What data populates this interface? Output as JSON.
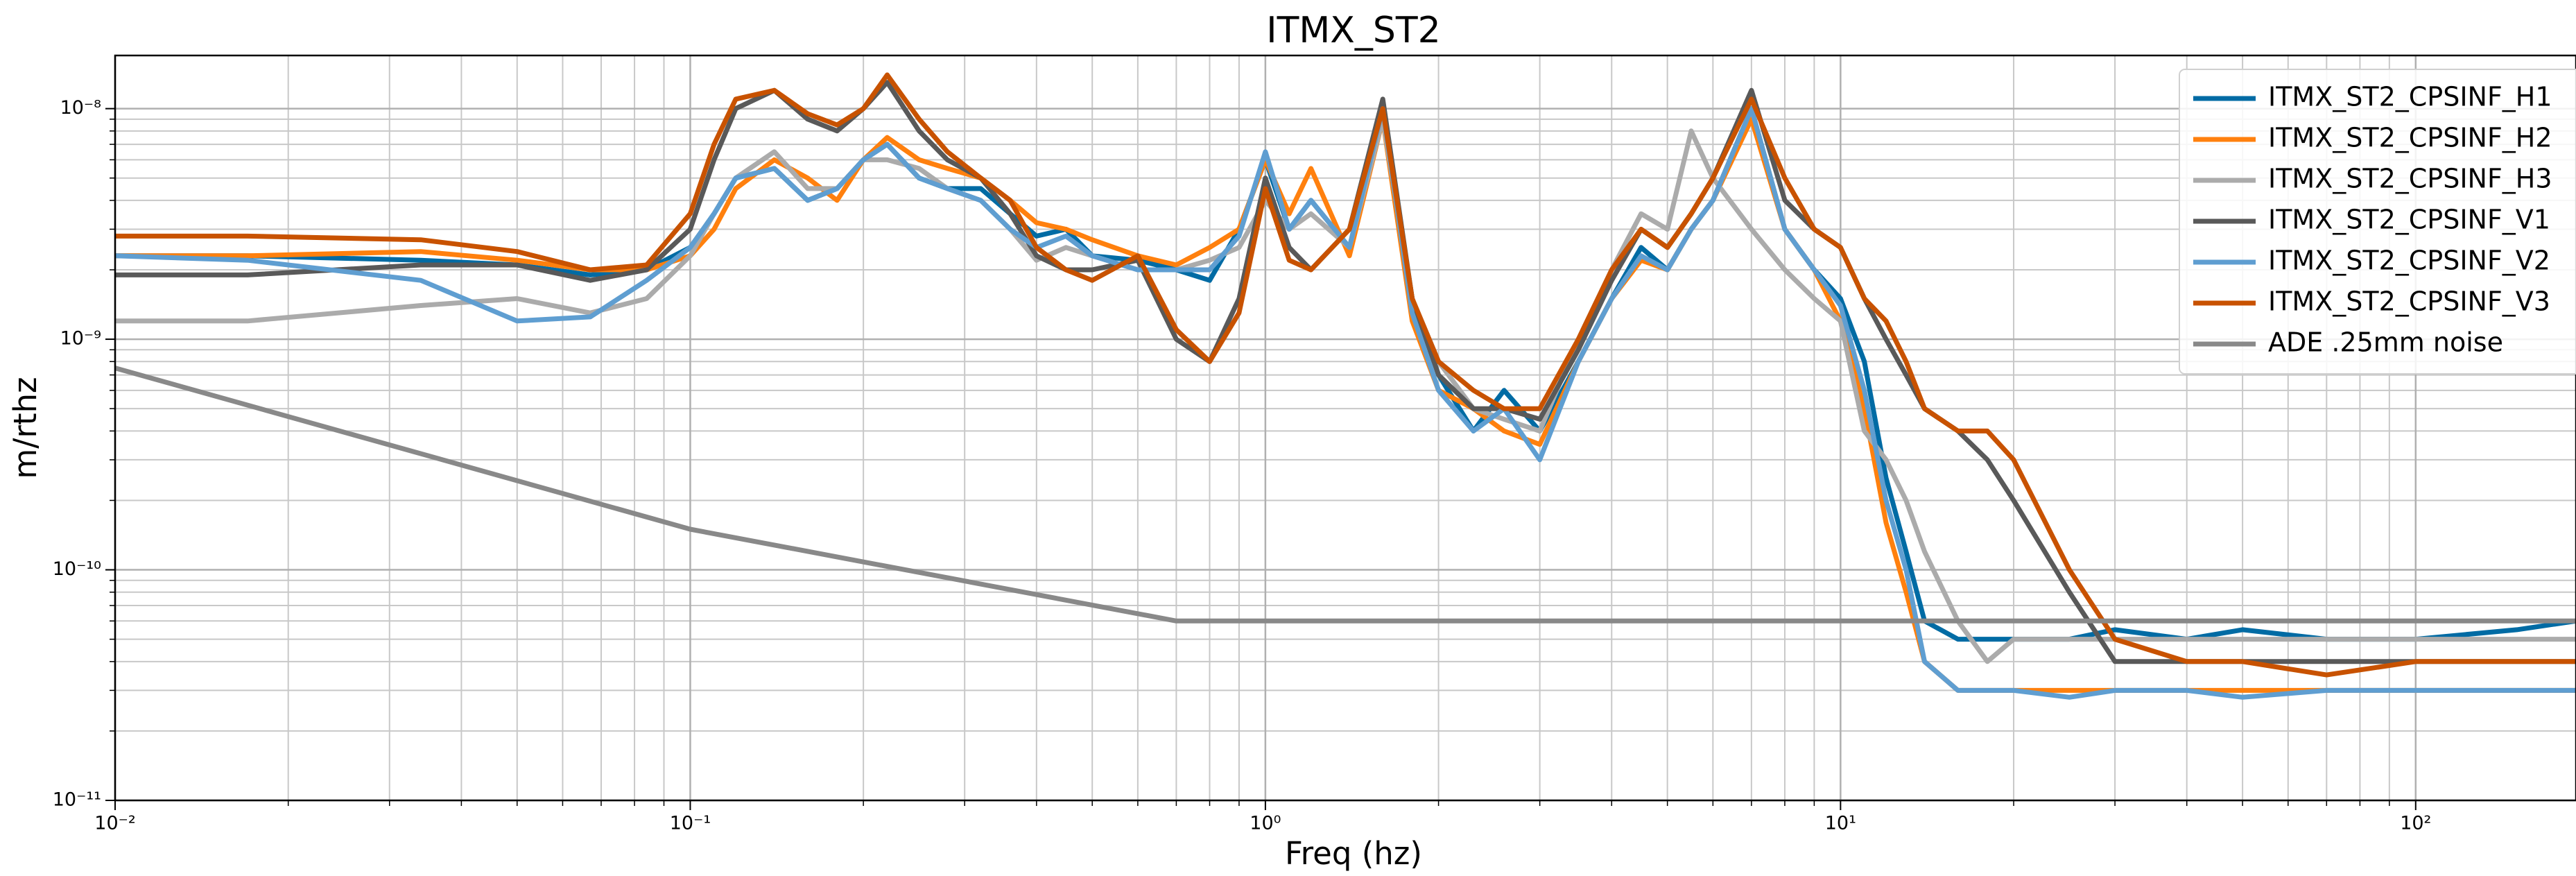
{
  "chart_data": {
    "type": "line",
    "title": "ITMX_ST2",
    "xlabel": "Freq (hz)",
    "ylabel": "m/rthz",
    "xscale": "log",
    "yscale": "log",
    "grid": true,
    "minor_grid": true,
    "legend": "upper right",
    "xlim": [
      0.01,
      190
    ],
    "ylim": [
      1e-11,
      1.7e-08
    ],
    "xticks": [
      {
        "value": 0.01,
        "label": "10⁻²"
      },
      {
        "value": 0.1,
        "label": "10⁻¹"
      },
      {
        "value": 1,
        "label": "10⁰"
      },
      {
        "value": 10,
        "label": "10¹"
      },
      {
        "value": 100,
        "label": "10²"
      }
    ],
    "yticks": [
      {
        "value": 1e-11,
        "label": "10⁻¹¹"
      },
      {
        "value": 1e-10,
        "label": "10⁻¹⁰"
      },
      {
        "value": 1e-09,
        "label": "10⁻⁹"
      },
      {
        "value": 1e-08,
        "label": "10⁻⁸"
      }
    ],
    "x": [
      0.01,
      0.017,
      0.034,
      0.05,
      0.067,
      0.084,
      0.1,
      0.11,
      0.12,
      0.14,
      0.16,
      0.18,
      0.2,
      0.22,
      0.25,
      0.28,
      0.32,
      0.36,
      0.4,
      0.45,
      0.5,
      0.6,
      0.7,
      0.8,
      0.9,
      1.0,
      1.1,
      1.2,
      1.4,
      1.6,
      1.8,
      2.0,
      2.3,
      2.6,
      3.0,
      3.5,
      4.0,
      4.5,
      5.0,
      5.5,
      6.0,
      7.0,
      8.0,
      9.0,
      10,
      11,
      12,
      13,
      14,
      16,
      18,
      20,
      25,
      30,
      40,
      50,
      70,
      100,
      150,
      190
    ],
    "series": [
      {
        "name": "ITMX_ST2_CPSINF_H1",
        "color": "#006ba4",
        "values": [
          2.3e-09,
          2.3e-09,
          2.2e-09,
          2.1e-09,
          1.9e-09,
          2e-09,
          2.5e-09,
          3.5e-09,
          5e-09,
          5.5e-09,
          4e-09,
          4.5e-09,
          6e-09,
          7e-09,
          5e-09,
          4.5e-09,
          4.5e-09,
          3.5e-09,
          2.8e-09,
          3e-09,
          2.3e-09,
          2.2e-09,
          2e-09,
          1.8e-09,
          3e-09,
          6e-09,
          3e-09,
          4e-09,
          2.5e-09,
          1e-08,
          1.5e-09,
          7e-10,
          4e-10,
          6e-10,
          4e-10,
          8e-10,
          1.5e-09,
          2.5e-09,
          2e-09,
          3e-09,
          4e-09,
          1e-08,
          3e-09,
          2e-09,
          1.5e-09,
          8e-10,
          2.5e-10,
          1.2e-10,
          6e-11,
          5e-11,
          5e-11,
          5e-11,
          5e-11,
          5.5e-11,
          5e-11,
          5.5e-11,
          5e-11,
          5e-11,
          5.5e-11,
          6e-11
        ]
      },
      {
        "name": "ITMX_ST2_CPSINF_H2",
        "color": "#ff800e",
        "values": [
          2.3e-09,
          2.3e-09,
          2.4e-09,
          2.2e-09,
          2e-09,
          2e-09,
          2.3e-09,
          3e-09,
          4.5e-09,
          6e-09,
          5e-09,
          4e-09,
          6e-09,
          7.5e-09,
          6e-09,
          5.5e-09,
          5e-09,
          4e-09,
          3.2e-09,
          3e-09,
          2.7e-09,
          2.3e-09,
          2.1e-09,
          2.5e-09,
          3e-09,
          6e-09,
          3.5e-09,
          5.5e-09,
          2.3e-09,
          9e-09,
          1.2e-09,
          6e-10,
          5e-10,
          4e-10,
          3.5e-10,
          8e-10,
          1.5e-09,
          2.2e-09,
          2e-09,
          3e-09,
          4e-09,
          9e-09,
          3e-09,
          2e-09,
          1.2e-09,
          5e-10,
          1.6e-10,
          8e-11,
          4e-11,
          3e-11,
          3e-11,
          3e-11,
          3e-11,
          3e-11,
          3e-11,
          3e-11,
          3e-11,
          3e-11,
          3e-11,
          3e-11
        ]
      },
      {
        "name": "ITMX_ST2_CPSINF_H3",
        "color": "#ababab",
        "values": [
          1.2e-09,
          1.2e-09,
          1.4e-09,
          1.5e-09,
          1.3e-09,
          1.5e-09,
          2.3e-09,
          3.5e-09,
          5e-09,
          6.5e-09,
          4.5e-09,
          4.5e-09,
          6e-09,
          6e-09,
          5.5e-09,
          4.5e-09,
          4e-09,
          3e-09,
          2.2e-09,
          2.5e-09,
          2.3e-09,
          2e-09,
          2e-09,
          2.2e-09,
          2.5e-09,
          4e-09,
          3e-09,
          3.5e-09,
          2.5e-09,
          9e-09,
          1.5e-09,
          8e-10,
          5e-10,
          4.5e-10,
          4e-10,
          1e-09,
          2e-09,
          3.5e-09,
          3e-09,
          8e-09,
          5e-09,
          3e-09,
          2e-09,
          1.5e-09,
          1.2e-09,
          4e-10,
          3e-10,
          2e-10,
          1.2e-10,
          6e-11,
          4e-11,
          5e-11,
          5e-11,
          5e-11,
          5e-11,
          5e-11,
          5e-11,
          5e-11,
          5e-11,
          5e-11
        ]
      },
      {
        "name": "ITMX_ST2_CPSINF_V1",
        "color": "#595959",
        "values": [
          1.9e-09,
          1.9e-09,
          2.1e-09,
          2.1e-09,
          1.8e-09,
          2e-09,
          3e-09,
          6e-09,
          1e-08,
          1.2e-08,
          9e-09,
          8e-09,
          1e-08,
          1.3e-08,
          8e-09,
          6e-09,
          5e-09,
          3.5e-09,
          2.3e-09,
          2e-09,
          2e-09,
          2.2e-09,
          1e-09,
          8e-10,
          1.5e-09,
          5e-09,
          2.5e-09,
          2e-09,
          3e-09,
          1.1e-08,
          1.5e-09,
          7e-10,
          5e-10,
          5e-10,
          4.5e-10,
          9e-10,
          1.8e-09,
          3e-09,
          2.5e-09,
          3.5e-09,
          5e-09,
          1.2e-08,
          4e-09,
          3e-09,
          2.5e-09,
          1.5e-09,
          1e-09,
          7e-10,
          5e-10,
          4e-10,
          3e-10,
          2e-10,
          8e-11,
          4e-11,
          4e-11,
          4e-11,
          4e-11,
          4e-11,
          4e-11,
          4e-11
        ]
      },
      {
        "name": "ITMX_ST2_CPSINF_V2",
        "color": "#5f9ed1",
        "values": [
          2.3e-09,
          2.2e-09,
          1.8e-09,
          1.2e-09,
          1.25e-09,
          1.8e-09,
          2.5e-09,
          3.5e-09,
          5e-09,
          5.5e-09,
          4e-09,
          4.5e-09,
          6e-09,
          7e-09,
          5e-09,
          4.5e-09,
          4e-09,
          3e-09,
          2.5e-09,
          2.8e-09,
          2.3e-09,
          2e-09,
          2e-09,
          2e-09,
          2.8e-09,
          6.5e-09,
          3e-09,
          4e-09,
          2.5e-09,
          1e-08,
          1.3e-09,
          6e-10,
          4e-10,
          5e-10,
          3e-10,
          8e-10,
          1.5e-09,
          2.3e-09,
          2e-09,
          3e-09,
          4e-09,
          1e-08,
          3e-09,
          2e-09,
          1.4e-09,
          6e-10,
          2e-10,
          1e-10,
          4e-11,
          3e-11,
          3e-11,
          3e-11,
          2.8e-11,
          3e-11,
          3e-11,
          2.8e-11,
          3e-11,
          3e-11,
          3e-11,
          3e-11
        ]
      },
      {
        "name": "ITMX_ST2_CPSINF_V3",
        "color": "#c85200",
        "values": [
          2.8e-09,
          2.8e-09,
          2.7e-09,
          2.4e-09,
          2e-09,
          2.1e-09,
          3.5e-09,
          7e-09,
          1.1e-08,
          1.2e-08,
          9.5e-09,
          8.5e-09,
          1e-08,
          1.4e-08,
          9e-09,
          6.5e-09,
          5e-09,
          4e-09,
          2.5e-09,
          2e-09,
          1.8e-09,
          2.3e-09,
          1.1e-09,
          8e-10,
          1.3e-09,
          4.5e-09,
          2.2e-09,
          2e-09,
          3e-09,
          1e-08,
          1.5e-09,
          8e-10,
          6e-10,
          5e-10,
          5e-10,
          1e-09,
          2e-09,
          3e-09,
          2.5e-09,
          3.5e-09,
          5e-09,
          1.1e-08,
          5e-09,
          3e-09,
          2.5e-09,
          1.5e-09,
          1.2e-09,
          8e-10,
          5e-10,
          4e-10,
          4e-10,
          3e-10,
          1e-10,
          5e-11,
          4e-11,
          4e-11,
          3.5e-11,
          4e-11,
          4e-11,
          4e-11
        ]
      },
      {
        "name": "ADE .25mm noise",
        "color": "#898989",
        "x": [
          0.01,
          0.1,
          0.7,
          190
        ],
        "values": [
          7.5e-10,
          1.5e-10,
          6e-11,
          6e-11
        ]
      }
    ]
  }
}
